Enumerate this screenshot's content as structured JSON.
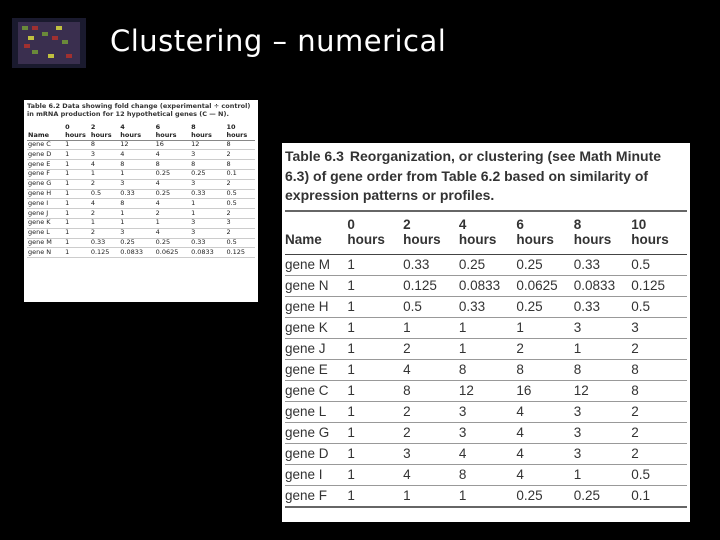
{
  "title": "Clustering – numerical",
  "table_small": {
    "caption": "Table 6.2 Data showing fold change (experimental ÷ control) in mRNA production for 12 hypothetical genes (C — N).",
    "header": [
      "Name",
      "0 hours",
      "2 hours",
      "4 hours",
      "6 hours",
      "8 hours",
      "10 hours"
    ],
    "rows": [
      [
        "gene C",
        "1",
        "8",
        "12",
        "16",
        "12",
        "8"
      ],
      [
        "gene D",
        "1",
        "3",
        "4",
        "4",
        "3",
        "2"
      ],
      [
        "gene E",
        "1",
        "4",
        "8",
        "8",
        "8",
        "8"
      ],
      [
        "gene F",
        "1",
        "1",
        "1",
        "0.25",
        "0.25",
        "0.1"
      ],
      [
        "gene G",
        "1",
        "2",
        "3",
        "4",
        "3",
        "2"
      ],
      [
        "gene H",
        "1",
        "0.5",
        "0.33",
        "0.25",
        "0.33",
        "0.5"
      ],
      [
        "gene I",
        "1",
        "4",
        "8",
        "4",
        "1",
        "0.5"
      ],
      [
        "gene J",
        "1",
        "2",
        "1",
        "2",
        "1",
        "2"
      ],
      [
        "gene K",
        "1",
        "1",
        "1",
        "1",
        "3",
        "3"
      ],
      [
        "gene L",
        "1",
        "2",
        "3",
        "4",
        "3",
        "2"
      ],
      [
        "gene M",
        "1",
        "0.33",
        "0.25",
        "0.25",
        "0.33",
        "0.5"
      ],
      [
        "gene N",
        "1",
        "0.125",
        "0.0833",
        "0.0625",
        "0.0833",
        "0.125"
      ]
    ]
  },
  "table_main": {
    "label": "Table 6.3",
    "caption": "Reorganization, or clustering (see Math Minute 6.3) of gene order from Table 6.2 based on similarity of expression patterns or profiles.",
    "header": [
      "Name",
      "0 hours",
      "2 hours",
      "4 hours",
      "6 hours",
      "8 hours",
      "10 hours"
    ],
    "rows": [
      [
        "gene M",
        "1",
        "0.33",
        "0.25",
        "0.25",
        "0.33",
        "0.5"
      ],
      [
        "gene N",
        "1",
        "0.125",
        "0.0833",
        "0.0625",
        "0.0833",
        "0.125"
      ],
      [
        "gene H",
        "1",
        "0.5",
        "0.33",
        "0.25",
        "0.33",
        "0.5"
      ],
      [
        "gene K",
        "1",
        "1",
        "1",
        "1",
        "3",
        "3"
      ],
      [
        "gene J",
        "1",
        "2",
        "1",
        "2",
        "1",
        "2"
      ],
      [
        "gene E",
        "1",
        "4",
        "8",
        "8",
        "8",
        "8"
      ],
      [
        "gene C",
        "1",
        "8",
        "12",
        "16",
        "12",
        "8"
      ],
      [
        "gene L",
        "1",
        "2",
        "3",
        "4",
        "3",
        "2"
      ],
      [
        "gene G",
        "1",
        "2",
        "3",
        "4",
        "3",
        "2"
      ],
      [
        "gene D",
        "1",
        "3",
        "4",
        "4",
        "3",
        "2"
      ],
      [
        "gene I",
        "1",
        "4",
        "8",
        "4",
        "1",
        "0.5"
      ],
      [
        "gene F",
        "1",
        "1",
        "1",
        "0.25",
        "0.25",
        "0.1"
      ]
    ]
  }
}
